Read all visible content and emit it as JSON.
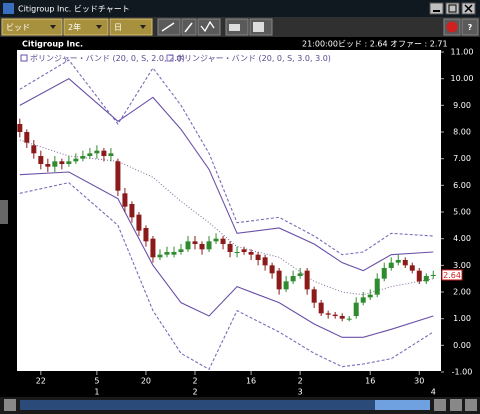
{
  "window": {
    "title": "Citigroup Inc. ビッドチャート"
  },
  "toolbar": {
    "dropdowns": [
      "ビッド",
      "2年",
      "日"
    ],
    "help": "?"
  },
  "quote": {
    "time": "21:00:00",
    "bid": "ビッド : 2.64",
    "offer": "オファー : 2.71"
  },
  "chart_data": {
    "type": "candlestick",
    "title": "Citigroup Inc.",
    "x": [
      0,
      1,
      2,
      3,
      4,
      5,
      6,
      7,
      8,
      9,
      10,
      11,
      12,
      13,
      14,
      15,
      16,
      17,
      18,
      19,
      20,
      21,
      22,
      23,
      24,
      25,
      26,
      27,
      28,
      29,
      30,
      31,
      32,
      33,
      34,
      35,
      36,
      37,
      38,
      39,
      40,
      41,
      42,
      43,
      44,
      45,
      46,
      47,
      48,
      49,
      50,
      51,
      52,
      53,
      54,
      55,
      56,
      57,
      58,
      59
    ],
    "open": [
      8.3,
      8.0,
      7.5,
      7.1,
      6.8,
      6.7,
      6.9,
      6.8,
      6.9,
      7.0,
      7.1,
      7.2,
      7.3,
      7.1,
      6.9,
      5.7,
      5.3,
      4.9,
      4.4,
      4.0,
      3.3,
      3.4,
      3.4,
      3.5,
      3.6,
      3.9,
      3.8,
      3.6,
      3.9,
      4.0,
      3.8,
      3.5,
      3.6,
      3.5,
      3.4,
      3.3,
      3.0,
      2.8,
      2.1,
      2.4,
      2.6,
      2.8,
      2.1,
      1.6,
      1.2,
      1.15,
      1.1,
      1.0,
      1.1,
      1.6,
      1.8,
      1.9,
      2.5,
      2.9,
      3.1,
      3.2,
      3.0,
      2.8,
      2.4,
      2.6
    ],
    "high": [
      8.5,
      8.1,
      7.7,
      7.3,
      7.0,
      7.1,
      7.0,
      7.1,
      7.2,
      7.3,
      7.4,
      7.5,
      7.4,
      7.4,
      7.0,
      5.9,
      5.4,
      5.0,
      4.5,
      4.1,
      3.6,
      3.7,
      3.7,
      3.8,
      4.1,
      4.1,
      3.9,
      4.1,
      4.2,
      4.1,
      3.9,
      3.7,
      3.7,
      3.6,
      3.5,
      3.4,
      3.1,
      2.9,
      2.6,
      2.8,
      2.9,
      2.9,
      2.2,
      1.7,
      1.3,
      1.25,
      1.2,
      1.1,
      1.8,
      2.0,
      2.1,
      2.7,
      3.1,
      3.3,
      3.4,
      3.3,
      3.1,
      2.9,
      2.7,
      2.8
    ],
    "low": [
      7.8,
      7.4,
      7.0,
      6.6,
      6.5,
      6.5,
      6.6,
      6.7,
      6.8,
      6.9,
      7.0,
      7.0,
      6.9,
      6.9,
      5.6,
      5.0,
      4.6,
      4.1,
      3.7,
      3.1,
      3.2,
      3.3,
      3.3,
      3.4,
      3.5,
      3.6,
      3.4,
      3.5,
      3.8,
      3.6,
      3.3,
      3.3,
      3.4,
      3.2,
      3.0,
      2.8,
      2.5,
      1.9,
      2.0,
      2.3,
      2.5,
      1.9,
      1.4,
      1.1,
      1.0,
      1.0,
      0.9,
      0.9,
      1.0,
      1.5,
      1.7,
      1.8,
      2.4,
      2.8,
      3.0,
      2.9,
      2.7,
      2.3,
      2.3,
      2.5
    ],
    "close": [
      8.0,
      7.6,
      7.2,
      6.8,
      6.7,
      6.9,
      6.8,
      6.9,
      7.0,
      7.1,
      7.2,
      7.3,
      7.1,
      7.2,
      5.8,
      5.2,
      4.8,
      4.3,
      3.9,
      3.3,
      3.4,
      3.5,
      3.5,
      3.6,
      3.9,
      3.8,
      3.6,
      3.9,
      4.0,
      3.8,
      3.5,
      3.5,
      3.5,
      3.4,
      3.2,
      3.0,
      2.7,
      2.1,
      2.4,
      2.6,
      2.7,
      2.1,
      1.6,
      1.2,
      1.15,
      1.1,
      1.0,
      1.0,
      1.6,
      1.8,
      1.9,
      2.5,
      2.9,
      3.1,
      3.2,
      3.0,
      2.8,
      2.4,
      2.6,
      2.64
    ],
    "up_color": "#2e8b2e",
    "down_color": "#8b1a1a",
    "band_x": [
      0,
      7,
      14,
      19,
      23,
      27,
      31,
      37,
      42,
      46,
      49,
      53,
      59
    ],
    "middle": {
      "color": "#7a6a9a",
      "values": [
        7.7,
        7.1,
        6.9,
        6.3,
        5.4,
        4.6,
        3.7,
        3.3,
        2.4,
        2.0,
        1.9,
        2.2,
        2.5
      ]
    },
    "bands": [
      {
        "name": "ボリンジャー・バンド (20, 0, S, 2.0, 2.0)",
        "color": "#6b4fa8",
        "dashed": false,
        "upper": [
          9.0,
          10.0,
          8.4,
          9.3,
          8.1,
          6.6,
          4.2,
          4.4,
          3.8,
          3.1,
          2.8,
          3.4,
          3.5
        ],
        "lower": [
          6.4,
          6.5,
          5.5,
          3.0,
          1.6,
          1.1,
          2.2,
          1.6,
          0.8,
          0.3,
          0.3,
          0.6,
          1.1
        ]
      },
      {
        "name": "ボリンジャー・バンド (20, 0, S, 3.0, 3.0)",
        "color": "#7a6aba",
        "dashed": true,
        "upper": [
          9.6,
          10.7,
          8.3,
          10.4,
          9.0,
          7.2,
          4.6,
          4.8,
          4.1,
          3.4,
          3.5,
          4.2,
          4.1
        ],
        "lower": [
          5.7,
          6.1,
          4.5,
          1.3,
          -0.3,
          -0.9,
          1.3,
          0.5,
          -0.3,
          -0.8,
          -0.7,
          -0.5,
          0.5
        ]
      }
    ],
    "xlim": [
      -0.4,
      60.1
    ],
    "xticks": [
      {
        "value": 3,
        "label": "22"
      },
      {
        "value": 11,
        "label": "5"
      },
      {
        "value": 18,
        "label": "20"
      },
      {
        "value": 25,
        "label": "2"
      },
      {
        "value": 33,
        "label": "16"
      },
      {
        "value": 40,
        "label": "2"
      },
      {
        "value": 50,
        "label": "16"
      },
      {
        "value": 57,
        "label": "30"
      }
    ],
    "month_ticks": [
      {
        "value": 11,
        "label": "1"
      },
      {
        "value": 25,
        "label": "2"
      },
      {
        "value": 40,
        "label": "3"
      },
      {
        "value": 59,
        "label": "4"
      }
    ],
    "ylim": [
      -1,
      11
    ],
    "yticks": [
      {
        "value": -1,
        "label": "-1.00"
      },
      {
        "value": 0,
        "label": "0.00"
      },
      {
        "value": 1,
        "label": "1.00"
      },
      {
        "value": 2,
        "label": "2.00"
      },
      {
        "value": 3,
        "label": "3.00"
      },
      {
        "value": 4,
        "label": "4.00"
      },
      {
        "value": 5,
        "label": "5.00"
      },
      {
        "value": 6,
        "label": "6.00"
      },
      {
        "value": 7,
        "label": "7.00"
      },
      {
        "value": 8,
        "label": "8.00"
      },
      {
        "value": 9,
        "label": "9.00"
      },
      {
        "value": 10,
        "label": "10.00"
      },
      {
        "value": 11,
        "label": "11.00"
      }
    ],
    "price_tag": {
      "value": 2.64,
      "label": "2.64"
    }
  }
}
